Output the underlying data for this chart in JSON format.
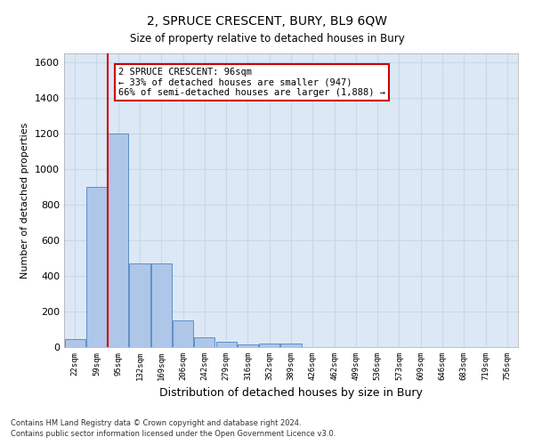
{
  "title": "2, SPRUCE CRESCENT, BURY, BL9 6QW",
  "subtitle": "Size of property relative to detached houses in Bury",
  "xlabel": "Distribution of detached houses by size in Bury",
  "ylabel": "Number of detached properties",
  "footnote1": "Contains HM Land Registry data © Crown copyright and database right 2024.",
  "footnote2": "Contains public sector information licensed under the Open Government Licence v3.0.",
  "bin_labels": [
    "22sqm",
    "59sqm",
    "95sqm",
    "132sqm",
    "169sqm",
    "206sqm",
    "242sqm",
    "279sqm",
    "316sqm",
    "352sqm",
    "389sqm",
    "426sqm",
    "462sqm",
    "499sqm",
    "536sqm",
    "573sqm",
    "609sqm",
    "646sqm",
    "683sqm",
    "719sqm",
    "756sqm"
  ],
  "bar_values": [
    45,
    900,
    1200,
    470,
    470,
    150,
    55,
    30,
    15,
    20,
    20,
    0,
    0,
    0,
    0,
    0,
    0,
    0,
    0,
    0,
    0
  ],
  "bar_color": "#aec6e8",
  "bar_edge_color": "#5b8fc9",
  "grid_color": "#c8d8e8",
  "background_color": "#dce8f5",
  "red_line_color": "#cc0000",
  "annotation_text": "2 SPRUCE CRESCENT: 96sqm\n← 33% of detached houses are smaller (947)\n66% of semi-detached houses are larger (1,888) →",
  "annotation_box_color": "#cc0000",
  "ylim": [
    0,
    1650
  ],
  "yticks": [
    0,
    200,
    400,
    600,
    800,
    1000,
    1200,
    1400,
    1600
  ]
}
